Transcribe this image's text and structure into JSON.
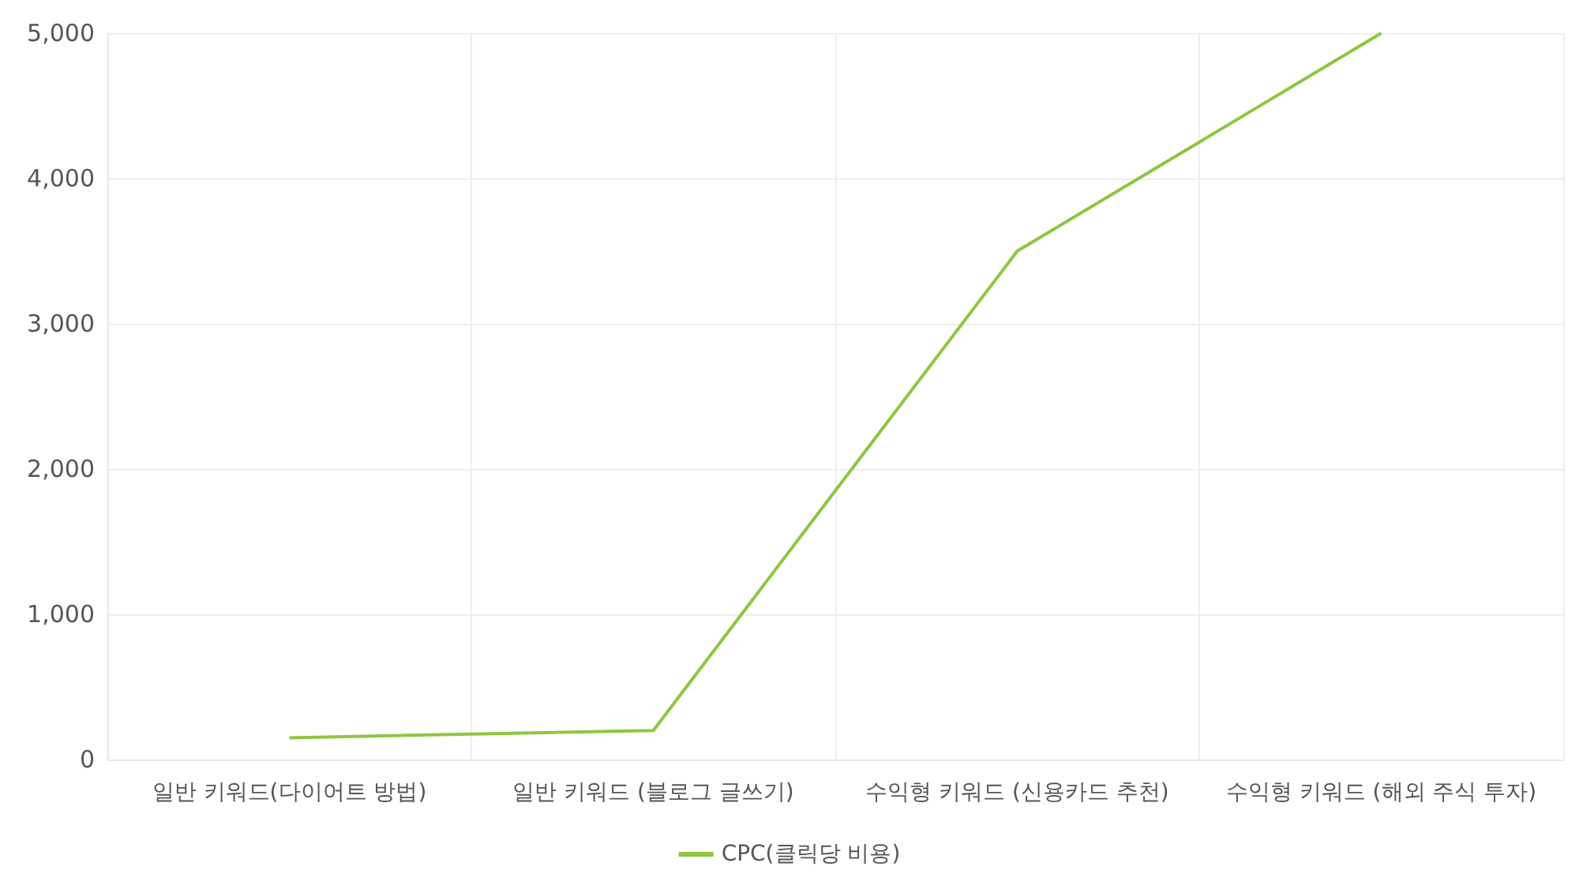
{
  "chart_data": {
    "type": "line",
    "categories": [
      "일반 키워드(다이어트 방법)",
      "일반 키워드 (블로그 글쓰기)",
      "수익형 키워드 (신용카드 추천)",
      "수익형 키워드 (해외 주식 투자)"
    ],
    "series": [
      {
        "name": "CPC(클릭당 비용)",
        "color": "#8dc63f",
        "values": [
          150,
          200,
          3500,
          5000
        ]
      }
    ],
    "ylim": [
      0,
      5000
    ],
    "yticks": [
      0,
      {
        "value": 1000,
        "label": "1,000"
      },
      {
        "value": 2000,
        "label": "2,000"
      },
      {
        "value": 3000,
        "label": "3,000"
      },
      {
        "value": 4000,
        "label": "4,000"
      },
      {
        "value": 5000,
        "label": "5,000"
      }
    ],
    "grid": true,
    "legend": "bottom",
    "marker": "none",
    "line_style": "solid"
  }
}
